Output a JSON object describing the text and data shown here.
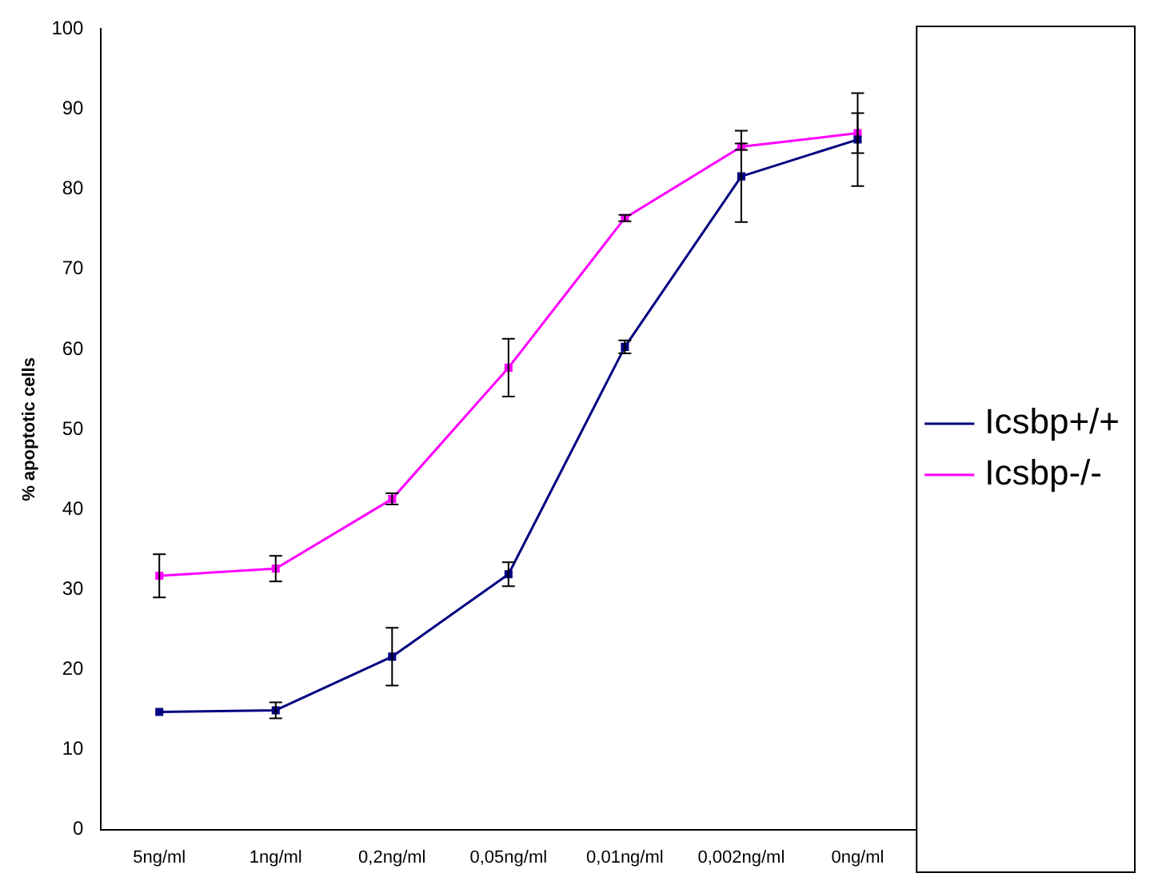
{
  "chart_data": {
    "type": "line",
    "ylabel": "% apoptotic cells",
    "categories": [
      "5ng/ml",
      "1ng/ml",
      "0,2ng/ml",
      "0,05ng/ml",
      "0,01ng/ml",
      "0,002ng/ml",
      "0ng/ml"
    ],
    "series": [
      {
        "name": "Icsbp+/+",
        "color": "#000080",
        "values": [
          14.7,
          14.9,
          21.6,
          31.9,
          60.3,
          81.6,
          86.2
        ],
        "errors": [
          null,
          1,
          3.6,
          1.5,
          0.8,
          5.7,
          5.8
        ]
      },
      {
        "name": "Icsbp-/-",
        "color": "#ff00ff",
        "values": [
          31.7,
          32.6,
          41.3,
          57.7,
          76.4,
          85.3,
          87
        ],
        "errors": [
          2.7,
          1.6,
          0.7,
          3.6,
          0.4,
          0.4,
          2.5
        ]
      }
    ],
    "ylim": [
      0,
      100
    ],
    "yticks": [
      0,
      10,
      20,
      30,
      40,
      50,
      60,
      70,
      80,
      90,
      100
    ],
    "grid": false,
    "legend": "right",
    "marker": "square",
    "line_style": "solid"
  }
}
